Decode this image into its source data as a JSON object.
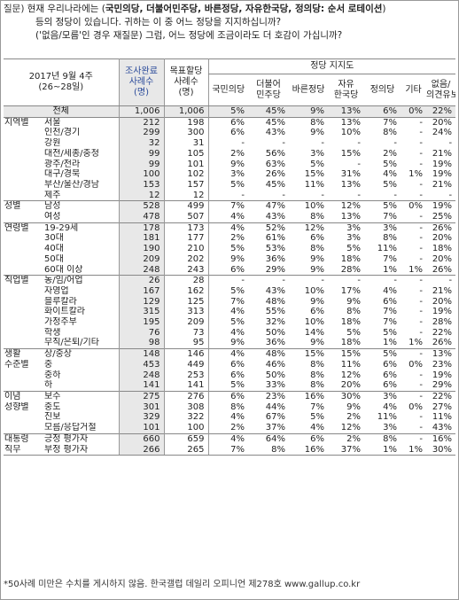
{
  "question": {
    "tag": "질문)",
    "line1_prefix": "현재 우리나라에는 (",
    "line1_parties": "국민의당, 더불어민주당, 바른정당, 자유한국당, 정의당: 순서 로테이션",
    "line1_suffix": ")",
    "line2": "등의 정당이 있습니다. 귀하는 이 중 어느 정당을 지지하십니까?",
    "line3": "('없음/모름'인 경우 재질문) 그럼, 어느 정당에 조금이라도 더 호감이 가십니까?"
  },
  "header": {
    "survey_label": "2017년 9월 4주",
    "survey_dates": "(26~28일)",
    "col_sample_1": "조사완료",
    "col_sample_2": "사례수",
    "col_sample_3": "(명)",
    "col_target_1": "목표할당",
    "col_target_2": "사례수",
    "col_target_3": "(명)",
    "support_title": "정당 지지도",
    "parties": [
      {
        "l1": "국민의당",
        "l2": ""
      },
      {
        "l1": "더불어",
        "l2": "민주당"
      },
      {
        "l1": "바른정당",
        "l2": ""
      },
      {
        "l1": "자유",
        "l2": "한국당"
      },
      {
        "l1": "정의당",
        "l2": ""
      },
      {
        "l1": "기타",
        "l2": ""
      },
      {
        "l1": "없음/",
        "l2": "의견유보"
      }
    ]
  },
  "rows": [
    {
      "group": "",
      "label": "전체",
      "n": "1,006",
      "t": "1,006",
      "v": [
        "5%",
        "45%",
        "9%",
        "13%",
        "6%",
        "0%",
        "22%"
      ],
      "total": true
    },
    {
      "group": "지역별",
      "label": "서울",
      "n": "212",
      "t": "198",
      "v": [
        "6%",
        "45%",
        "8%",
        "13%",
        "7%",
        "-",
        "20%"
      ],
      "sec": true
    },
    {
      "group": "",
      "label": "인천/경기",
      "n": "299",
      "t": "300",
      "v": [
        "6%",
        "43%",
        "9%",
        "10%",
        "8%",
        "-",
        "24%"
      ]
    },
    {
      "group": "",
      "label": "강원",
      "n": "32",
      "t": "31",
      "v": [
        "-",
        "-",
        "-",
        "-",
        "-",
        "-",
        "-"
      ]
    },
    {
      "group": "",
      "label": "대전/세종/충청",
      "n": "99",
      "t": "105",
      "v": [
        "2%",
        "56%",
        "3%",
        "15%",
        "2%",
        "-",
        "21%"
      ]
    },
    {
      "group": "",
      "label": "광주/전라",
      "n": "99",
      "t": "101",
      "v": [
        "9%",
        "63%",
        "5%",
        "-",
        "5%",
        "-",
        "19%"
      ]
    },
    {
      "group": "",
      "label": "대구/경북",
      "n": "100",
      "t": "102",
      "v": [
        "3%",
        "26%",
        "15%",
        "31%",
        "4%",
        "1%",
        "19%"
      ]
    },
    {
      "group": "",
      "label": "부산/울산/경남",
      "n": "153",
      "t": "157",
      "v": [
        "5%",
        "45%",
        "11%",
        "13%",
        "5%",
        "-",
        "21%"
      ]
    },
    {
      "group": "",
      "label": "제주",
      "n": "12",
      "t": "12",
      "v": [
        "-",
        "-",
        "-",
        "-",
        "-",
        "-",
        "-"
      ]
    },
    {
      "group": "성별",
      "label": "남성",
      "n": "528",
      "t": "499",
      "v": [
        "7%",
        "47%",
        "10%",
        "12%",
        "5%",
        "0%",
        "19%"
      ],
      "sec": true
    },
    {
      "group": "",
      "label": "여성",
      "n": "478",
      "t": "507",
      "v": [
        "4%",
        "43%",
        "8%",
        "13%",
        "7%",
        "-",
        "25%"
      ]
    },
    {
      "group": "연령별",
      "label": "19-29세",
      "n": "178",
      "t": "173",
      "v": [
        "4%",
        "52%",
        "12%",
        "3%",
        "3%",
        "-",
        "26%"
      ],
      "sec": true
    },
    {
      "group": "",
      "label": "30대",
      "n": "181",
      "t": "177",
      "v": [
        "2%",
        "61%",
        "6%",
        "3%",
        "8%",
        "-",
        "20%"
      ]
    },
    {
      "group": "",
      "label": "40대",
      "n": "190",
      "t": "210",
      "v": [
        "5%",
        "53%",
        "8%",
        "5%",
        "11%",
        "-",
        "18%"
      ]
    },
    {
      "group": "",
      "label": "50대",
      "n": "209",
      "t": "202",
      "v": [
        "9%",
        "36%",
        "9%",
        "18%",
        "7%",
        "-",
        "20%"
      ]
    },
    {
      "group": "",
      "label": "60대 이상",
      "n": "248",
      "t": "243",
      "v": [
        "6%",
        "29%",
        "9%",
        "28%",
        "1%",
        "1%",
        "26%"
      ]
    },
    {
      "group": "직업별",
      "label": "농/임/어업",
      "n": "26",
      "t": "28",
      "v": [
        "-",
        "-",
        "-",
        "-",
        "-",
        "-",
        "-"
      ],
      "sec": true
    },
    {
      "group": "",
      "label": "자영업",
      "n": "167",
      "t": "162",
      "v": [
        "5%",
        "43%",
        "10%",
        "17%",
        "4%",
        "-",
        "21%"
      ]
    },
    {
      "group": "",
      "label": "블루칼라",
      "n": "129",
      "t": "125",
      "v": [
        "7%",
        "48%",
        "9%",
        "9%",
        "6%",
        "-",
        "20%"
      ]
    },
    {
      "group": "",
      "label": "화이트칼라",
      "n": "315",
      "t": "313",
      "v": [
        "4%",
        "55%",
        "6%",
        "8%",
        "7%",
        "-",
        "19%"
      ]
    },
    {
      "group": "",
      "label": "가정주부",
      "n": "195",
      "t": "209",
      "v": [
        "5%",
        "32%",
        "10%",
        "18%",
        "7%",
        "-",
        "28%"
      ]
    },
    {
      "group": "",
      "label": "학생",
      "n": "76",
      "t": "73",
      "v": [
        "4%",
        "50%",
        "14%",
        "5%",
        "5%",
        "-",
        "22%"
      ]
    },
    {
      "group": "",
      "label": "무직/은퇴/기타",
      "n": "98",
      "t": "95",
      "v": [
        "9%",
        "36%",
        "9%",
        "18%",
        "1%",
        "1%",
        "26%"
      ]
    },
    {
      "group": "생활",
      "label": "상/중상",
      "n": "148",
      "t": "146",
      "v": [
        "4%",
        "48%",
        "15%",
        "15%",
        "5%",
        "-",
        "13%"
      ],
      "sec": true
    },
    {
      "group": "수준별",
      "label": "중",
      "n": "453",
      "t": "449",
      "v": [
        "6%",
        "46%",
        "8%",
        "11%",
        "6%",
        "0%",
        "23%"
      ]
    },
    {
      "group": "",
      "label": "중하",
      "n": "248",
      "t": "253",
      "v": [
        "6%",
        "50%",
        "8%",
        "12%",
        "6%",
        "-",
        "19%"
      ]
    },
    {
      "group": "",
      "label": "하",
      "n": "141",
      "t": "141",
      "v": [
        "5%",
        "33%",
        "8%",
        "20%",
        "6%",
        "-",
        "29%"
      ]
    },
    {
      "group": "이념",
      "label": "보수",
      "n": "275",
      "t": "276",
      "v": [
        "6%",
        "23%",
        "16%",
        "30%",
        "3%",
        "-",
        "22%"
      ],
      "sec": true
    },
    {
      "group": "성향별",
      "label": "중도",
      "n": "301",
      "t": "308",
      "v": [
        "8%",
        "44%",
        "7%",
        "9%",
        "4%",
        "0%",
        "27%"
      ]
    },
    {
      "group": "",
      "label": "진보",
      "n": "329",
      "t": "322",
      "v": [
        "4%",
        "67%",
        "5%",
        "2%",
        "11%",
        "-",
        "11%"
      ]
    },
    {
      "group": "",
      "label": "모름/응답거절",
      "n": "101",
      "t": "100",
      "v": [
        "2%",
        "37%",
        "4%",
        "12%",
        "3%",
        "-",
        "43%"
      ]
    },
    {
      "group": "대통령",
      "label": "긍정 평가자",
      "n": "660",
      "t": "659",
      "v": [
        "4%",
        "64%",
        "6%",
        "2%",
        "8%",
        "-",
        "16%"
      ],
      "sec": true
    },
    {
      "group": "직무",
      "label": "부정 평가자",
      "n": "266",
      "t": "265",
      "v": [
        "7%",
        "8%",
        "16%",
        "37%",
        "1%",
        "1%",
        "30%"
      ]
    }
  ],
  "note": "*50사례 미만은 수치를 게시하지 않음. 한국갤럽 데일리 오피니언 제278호 www.gallup.co.kr"
}
